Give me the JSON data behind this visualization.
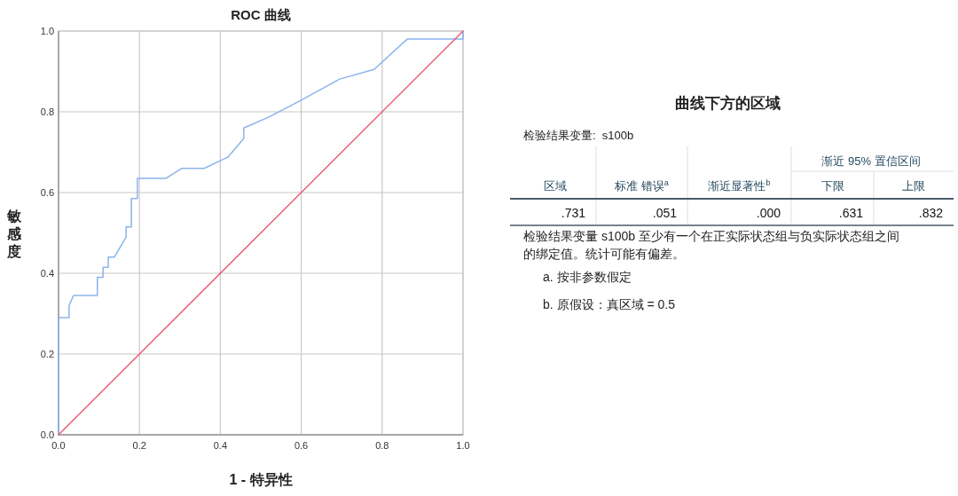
{
  "chart_data": [
    {
      "type": "line",
      "title": "ROC 曲线",
      "xlabel": "1 - 特异性",
      "ylabel": "敏感度",
      "grid": true,
      "marker": "none",
      "line_style": "solid",
      "xlim": [
        0,
        1
      ],
      "ylim": [
        0,
        1
      ],
      "xticks": [
        {
          "value": 0,
          "label": "0.0"
        },
        {
          "value": 0.2,
          "label": "0.2"
        },
        {
          "value": 0.4,
          "label": "0.4"
        },
        {
          "value": 0.6,
          "label": "0.6"
        },
        {
          "value": 0.8,
          "label": "0.8"
        },
        {
          "value": 1,
          "label": "1.0"
        }
      ],
      "yticks": [
        {
          "value": 0,
          "label": "0.0"
        },
        {
          "value": 0.2,
          "label": "0.2"
        },
        {
          "value": 0.4,
          "label": "0.4"
        },
        {
          "value": 0.6,
          "label": "0.6"
        },
        {
          "value": 0.8,
          "label": "0.8"
        },
        {
          "value": 1,
          "label": "1.0"
        }
      ],
      "series": [
        {
          "color": "#8ab4ec",
          "x": [
            0,
            0,
            0.026,
            0.026,
            0.037,
            0.096,
            0.096,
            0.11,
            0.11,
            0.123,
            0.123,
            0.138,
            0.167,
            0.167,
            0.18,
            0.18,
            0.195,
            0.195,
            0.265,
            0.305,
            0.36,
            0.419,
            0.458,
            0.458,
            0.52,
            0.6,
            0.695,
            0.78,
            0.862,
            1,
            1
          ],
          "values": [
            0,
            0.29,
            0.29,
            0.32,
            0.345,
            0.345,
            0.39,
            0.39,
            0.415,
            0.415,
            0.44,
            0.44,
            0.49,
            0.515,
            0.515,
            0.585,
            0.585,
            0.635,
            0.635,
            0.66,
            0.66,
            0.688,
            0.734,
            0.76,
            0.787,
            0.829,
            0.881,
            0.905,
            0.98,
            0.98,
            1
          ]
        },
        {
          "color": "#e8617a",
          "x": [
            0,
            1
          ],
          "values": [
            0,
            1
          ]
        }
      ]
    },
    {
      "type": "other",
      "title": "曲线下方的区域",
      "subtitle": "检验结果变量:  s100b",
      "legend_title": "渐近 95% 置信区间",
      "categories": [
        "区域",
        "标准 错误$^{a}$",
        "渐近显著性$^{b}$",
        "下限",
        "上限"
      ],
      "value_labels": [
        ".731",
        ".051",
        ".000",
        ".631",
        ".832"
      ],
      "annotations": [
        "检验结果变量 s100b 至少有一个在正实际状态组与负实际状态组之间的绑定值。统计可能有偏差。",
        "a. 按非参数假定",
        "b. 原假设：真区域 = 0.5"
      ]
    }
  ]
}
